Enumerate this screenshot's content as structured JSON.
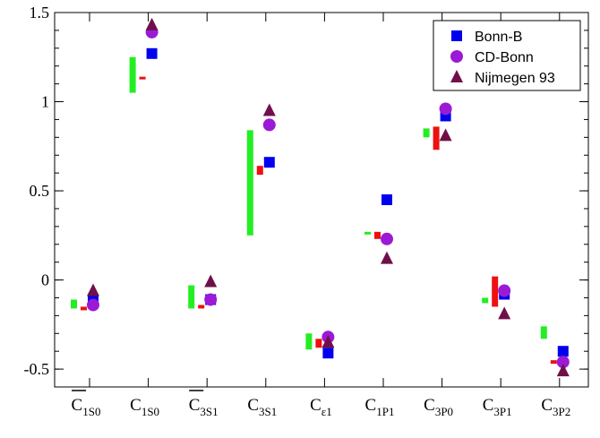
{
  "chart_data": {
    "type": "scatter",
    "ylim": [
      -0.6,
      1.5
    ],
    "yticks": [
      -0.5,
      0,
      0.5,
      1,
      1.5
    ],
    "ytick_labels": [
      "-0.5",
      "0",
      "0.5",
      "1",
      "1.5"
    ],
    "grid": false,
    "legend_position": "top-right",
    "categories": [
      {
        "id": "c1s0bar",
        "base": "C",
        "sub": "1S0",
        "bar": true
      },
      {
        "id": "c1s0",
        "base": "C",
        "sub": "1S0",
        "bar": false
      },
      {
        "id": "c3s1bar",
        "base": "C",
        "sub": "3S1",
        "bar": true
      },
      {
        "id": "c3s1",
        "base": "C",
        "sub": "3S1",
        "bar": false
      },
      {
        "id": "ceps1",
        "base": "C",
        "sub": "ε1",
        "bar": false
      },
      {
        "id": "c1p1",
        "base": "C",
        "sub": "1P1",
        "bar": false
      },
      {
        "id": "c3p0",
        "base": "C",
        "sub": "3P0",
        "bar": false
      },
      {
        "id": "c3p1",
        "base": "C",
        "sub": "3P1",
        "bar": false
      },
      {
        "id": "c3p2",
        "base": "C",
        "sub": "3P2",
        "bar": false
      }
    ],
    "ranges_green": [
      [
        -0.16,
        -0.11
      ],
      [
        1.05,
        1.25
      ],
      [
        -0.16,
        -0.03
      ],
      [
        0.25,
        0.84
      ],
      [
        -0.39,
        -0.3
      ],
      [
        0.26,
        0.27
      ],
      [
        0.8,
        0.85
      ],
      [
        -0.13,
        -0.1
      ],
      [
        -0.33,
        -0.26
      ]
    ],
    "ranges_red": [
      [
        -0.17,
        -0.15
      ],
      [
        1.13,
        1.14
      ],
      [
        -0.16,
        -0.14
      ],
      [
        0.59,
        0.64
      ],
      [
        -0.38,
        -0.33
      ],
      [
        0.23,
        0.27
      ],
      [
        0.73,
        0.86
      ],
      [
        -0.15,
        0.02
      ],
      [
        -0.47,
        -0.45
      ]
    ],
    "series": [
      {
        "name": "Bonn-B",
        "marker": "square",
        "color": "#0000ee",
        "values": [
          -0.12,
          1.27,
          -0.11,
          0.66,
          -0.41,
          0.45,
          0.92,
          -0.08,
          -0.4
        ]
      },
      {
        "name": "CD-Bonn",
        "marker": "circle",
        "color": "#9a1ad6",
        "values": [
          -0.14,
          1.39,
          -0.11,
          0.87,
          -0.32,
          0.23,
          0.96,
          -0.06,
          -0.46
        ]
      },
      {
        "name": "Nijmegen 93",
        "marker": "triangle",
        "color": "#70104a",
        "values": [
          -0.06,
          1.43,
          -0.01,
          0.95,
          -0.35,
          0.12,
          0.81,
          -0.19,
          -0.51
        ]
      }
    ],
    "range_colors": {
      "green": "#22ee22",
      "red": "#ee1111"
    }
  }
}
